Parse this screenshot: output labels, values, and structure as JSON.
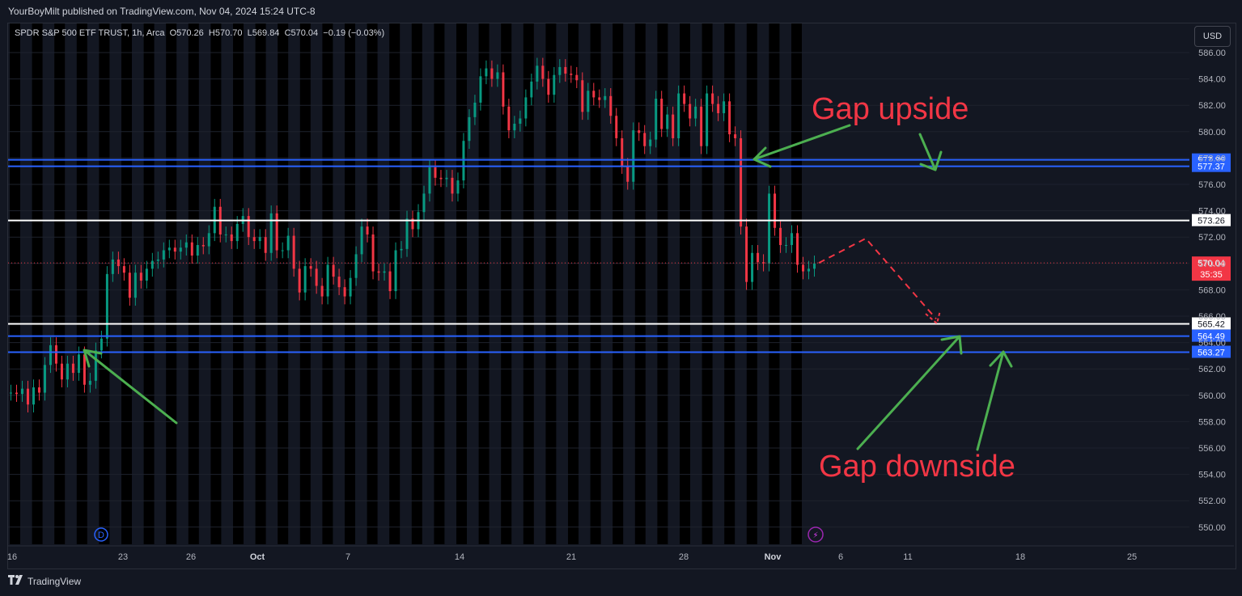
{
  "header": {
    "published": "YourBoyMilt published on TradingView.com, Nov 04, 2024 15:24 UTC-8"
  },
  "legend": {
    "symbol": "SPDR S&P 500 ETF TRUST, 1h, Arca",
    "o_label": "O",
    "o": "570.26",
    "h_label": "H",
    "h": "570.70",
    "l_label": "L",
    "l": "569.84",
    "c_label": "C",
    "c": "570.04",
    "change": "−0.19 (−0.03%)"
  },
  "currency_button": "USD",
  "footer": {
    "brand": "TradingView"
  },
  "markers": {
    "dividend": "D",
    "flash": "⚡"
  },
  "chart_data": {
    "type": "line",
    "ticker": "SPY",
    "interval": "1h",
    "ylim": [
      548.5,
      586.5
    ],
    "y_ticks": [
      "586.00",
      "584.00",
      "582.00",
      "580.00",
      "578.00",
      "576.00",
      "574.00",
      "572.00",
      "570.00",
      "568.00",
      "566.00",
      "564.00",
      "562.00",
      "560.00",
      "558.00",
      "556.00",
      "554.00",
      "552.00",
      "550.00"
    ],
    "x_ticks": [
      "16",
      "23",
      "26",
      "Oct",
      "7",
      "14",
      "21",
      "28",
      "Nov",
      "6",
      "11",
      "18",
      "25"
    ],
    "series": [
      {
        "values": [
          560.2,
          560.1,
          560.5,
          559.3,
          560.6,
          560.2,
          562.3,
          563.8,
          562.4,
          561.2,
          562.4,
          561.7,
          563.1,
          560.8,
          561.1,
          563.4,
          564.3,
          569.2,
          570.3,
          569.8,
          569.3,
          567.4,
          569.3,
          568.7,
          569.6,
          570.2,
          570.3,
          571.0,
          571.2,
          570.9,
          571.2,
          571.6,
          570.6,
          571.4,
          571.3,
          572.3,
          574.3,
          572.2,
          572.2,
          571.7,
          573.0,
          573.6,
          572.0,
          571.7,
          572.0,
          570.8,
          573.8,
          571.0,
          571.0,
          572.1,
          569.6,
          567.8,
          569.8,
          569.6,
          568.3,
          567.5,
          569.9,
          569.0,
          568.2,
          567.5,
          568.9,
          570.7,
          572.8,
          572.2,
          569.4,
          569.3,
          569.4,
          567.9,
          571.0,
          571.1,
          573.4,
          572.6,
          573.9,
          575.3,
          577.3,
          576.5,
          576.4,
          576.5,
          575.3,
          576.3,
          579.3,
          581.1,
          582.2,
          584.2,
          584.8,
          584.0,
          584.5,
          581.9,
          580.1,
          580.6,
          581.0,
          582.6,
          583.8,
          585.0,
          584.0,
          582.8,
          584.3,
          584.9,
          584.4,
          584.3,
          583.9,
          581.5,
          583.1,
          582.6,
          582.4,
          582.7,
          581.2,
          579.5,
          577.4,
          576.2,
          580.1,
          579.9,
          578.9,
          579.4,
          582.5,
          580.2,
          581.3,
          579.5,
          582.9,
          582.1,
          581.0,
          581.9,
          578.9,
          582.9,
          582.1,
          581.4,
          582.3,
          579.8,
          579.5,
          572.8,
          568.6,
          570.8,
          570.1,
          570.0,
          575.3,
          572.7,
          571.4,
          571.4,
          572.3,
          569.9,
          569.4,
          569.6,
          570.0
        ]
      }
    ],
    "levels": [
      {
        "value": 577.86,
        "label": "577.86",
        "color": "#2962ff",
        "style": "blue"
      },
      {
        "value": 577.37,
        "label": "577.37",
        "color": "#2962ff",
        "style": "blue"
      },
      {
        "value": 573.26,
        "label": "573.26",
        "color": "#ffffff",
        "style": "white"
      },
      {
        "value": 565.42,
        "label": "565.42",
        "color": "#ffffff",
        "style": "white"
      },
      {
        "value": 564.49,
        "label": "564.49",
        "color": "#2962ff",
        "style": "blue"
      },
      {
        "value": 563.27,
        "label": "563.27",
        "color": "#2962ff",
        "style": "blue"
      }
    ],
    "last_price": {
      "value": 570.04,
      "label": "570.04",
      "countdown": "35:35",
      "color": "#f23645"
    },
    "projection": [
      570.04,
      571.9,
      565.8
    ],
    "annotations": [
      {
        "text": "Gap upside",
        "color": "#f23645"
      },
      {
        "text": "Gap downside",
        "color": "#f23645"
      }
    ],
    "colors": {
      "up": "#089981",
      "down": "#f23645",
      "arrow": "#4caf50",
      "session_band": "#000000",
      "background": "#131722"
    }
  }
}
